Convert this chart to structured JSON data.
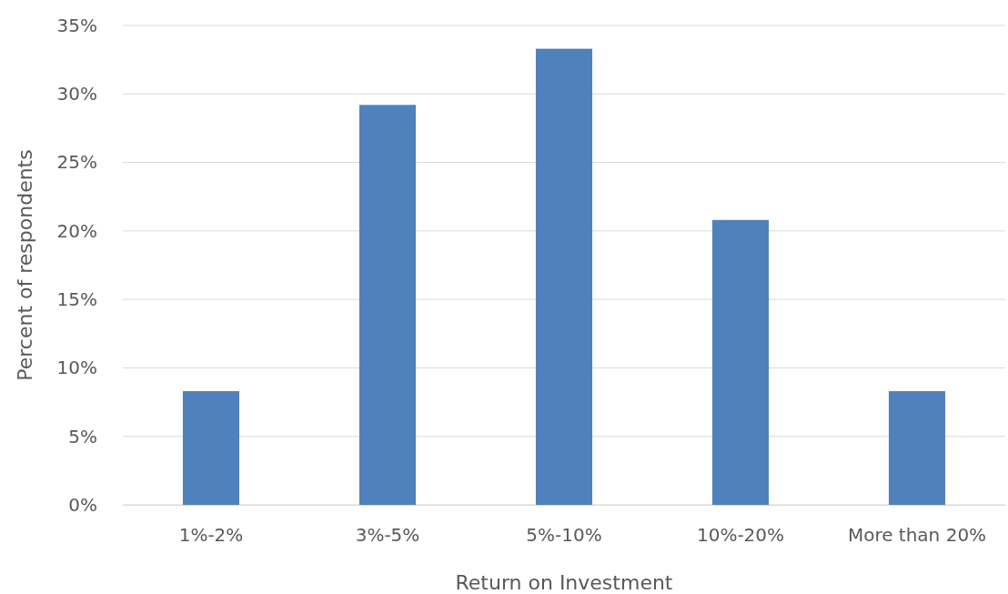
{
  "chart_data": {
    "type": "bar",
    "xlabel": "Return on Investment",
    "ylabel": "Percent of respondents",
    "categories": [
      "1%-2%",
      "3%-5%",
      "5%-10%",
      "10%-20%",
      "More than 20%"
    ],
    "values": [
      8.3,
      29.2,
      33.3,
      20.8,
      8.3
    ],
    "color": "#4f81bd",
    "ylim": [
      0,
      35
    ],
    "yticks": [
      {
        "value": 0,
        "label": "0%"
      },
      {
        "value": 5,
        "label": "5%"
      },
      {
        "value": 10,
        "label": "10%"
      },
      {
        "value": 15,
        "label": "15%"
      },
      {
        "value": 20,
        "label": "20%"
      },
      {
        "value": 25,
        "label": "25%"
      },
      {
        "value": 30,
        "label": "30%"
      },
      {
        "value": 35,
        "label": "35%"
      }
    ],
    "grid": "y"
  }
}
